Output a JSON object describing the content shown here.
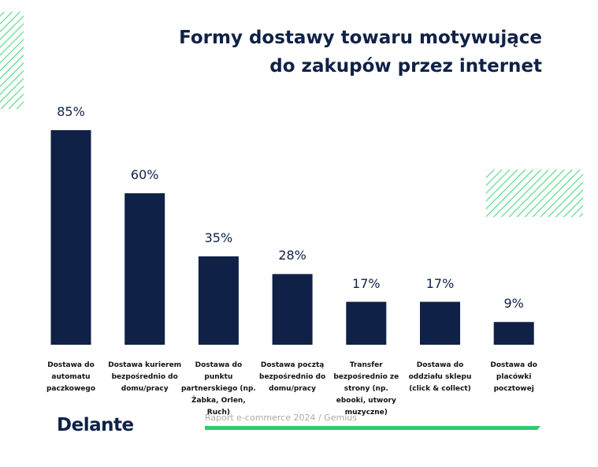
{
  "chart_data": {
    "type": "bar",
    "title": "Formy dostawy towaru motywujące do zakupów przez internet",
    "categories": [
      "Dostawa do automatu paczkowego",
      "Dostawa kurierem bezpośrednio do domu/pracy",
      "Dostawa do punktu partnerskiego (np. Żabka, Orlen, Ruch)",
      "Dostawa pocztą bezpośrednio do domu/pracy",
      "Transfer bezpośrednio ze strony (np. ebooki, utwory muzyczne)",
      "Dostawa do oddziału sklepu (click & collect)",
      "Dostawa do placówki pocztowej"
    ],
    "values": [
      85,
      60,
      35,
      28,
      17,
      17,
      9
    ],
    "value_labels": [
      "85%",
      "60%",
      "35%",
      "28%",
      "17%",
      "17%",
      "9%"
    ],
    "color": "#0f2147",
    "brand": "Delante",
    "source": "Raport e-commerce 2024 / Gemius"
  }
}
